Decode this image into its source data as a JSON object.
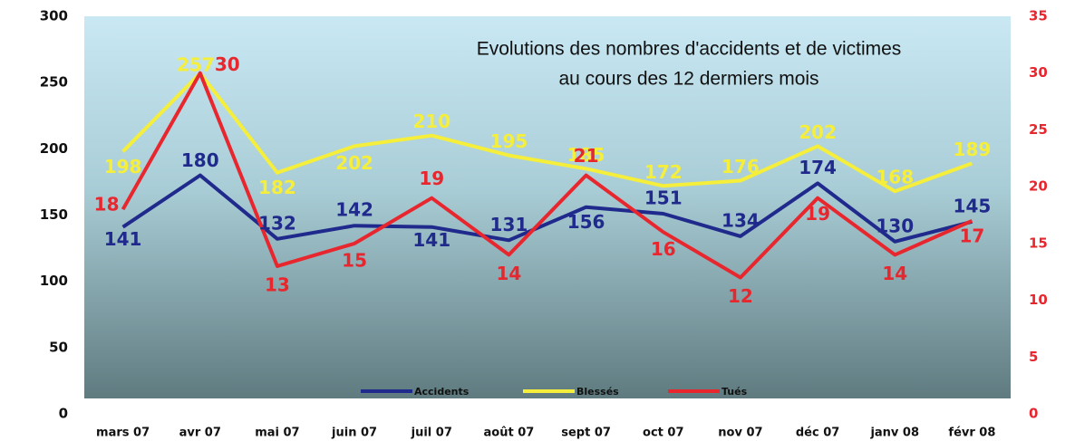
{
  "chart_data": {
    "type": "line",
    "title": [
      "Evolutions des nombres d'accidents et de victimes",
      "au cours des 12 dermiers mois"
    ],
    "categories": [
      "mars 07",
      "avr 07",
      "mai 07",
      "juin 07",
      "juil 07",
      "août 07",
      "sept 07",
      "oct 07",
      "nov 07",
      "déc 07",
      "janv 08",
      "févr 08"
    ],
    "series": [
      {
        "name": "Accidents",
        "color": "#1f2a8c",
        "values": [
          141,
          180,
          132,
          142,
          141,
          131,
          156,
          151,
          134,
          174,
          130,
          145
        ]
      },
      {
        "name": "Blessés",
        "color": "#f5ee3a",
        "values": [
          198,
          257,
          182,
          202,
          210,
          195,
          185,
          172,
          176,
          202,
          168,
          189
        ]
      },
      {
        "name": "Tués",
        "color": "#e8262e",
        "axis": "y2",
        "values": [
          18,
          30,
          13,
          15,
          19,
          14,
          21,
          16,
          12,
          19,
          14,
          17
        ]
      }
    ],
    "ylim": [
      0,
      300
    ],
    "yticks": [
      0,
      50,
      100,
      150,
      200,
      250,
      300
    ],
    "y2lim": [
      0,
      35
    ],
    "y2ticks": [
      0,
      5,
      10,
      15,
      20,
      25,
      30,
      35
    ],
    "legend": "bottom"
  }
}
